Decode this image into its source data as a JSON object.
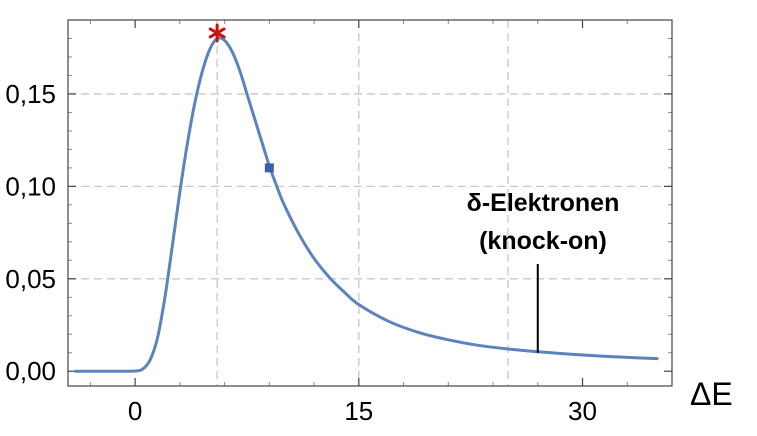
{
  "chart_data": {
    "type": "line",
    "title": "",
    "xlabel": "ΔE",
    "ylabel": "",
    "xlim": [
      -4.5,
      36
    ],
    "ylim": [
      -0.008,
      0.19
    ],
    "x_ticks": [
      0,
      15,
      30
    ],
    "x_tick_labels": [
      "0",
      "15",
      "30"
    ],
    "y_ticks": [
      0.0,
      0.05,
      0.1,
      0.15
    ],
    "y_tick_labels": [
      "0,00",
      "0,05",
      "0,10",
      "0,15"
    ],
    "x_gridlines": [
      5.5,
      15,
      25
    ],
    "y_gridlines": [
      0.05,
      0.1,
      0.15
    ],
    "grid": true,
    "colors": {
      "curve": "#5b84bf",
      "peak_marker": "#cc1111",
      "mean_marker": "#3b5fa5",
      "grid": "#c8c8c8",
      "frame": "#444444"
    },
    "series": [
      {
        "values": [
          {
            "x": -4.0,
            "y": 0.0
          },
          {
            "x": -1.0,
            "y": 0.0
          },
          {
            "x": 0.0,
            "y": 0.0001
          },
          {
            "x": 0.5,
            "y": 0.0011
          },
          {
            "x": 1.0,
            "y": 0.006
          },
          {
            "x": 1.5,
            "y": 0.018
          },
          {
            "x": 2.0,
            "y": 0.04
          },
          {
            "x": 2.5,
            "y": 0.068
          },
          {
            "x": 3.0,
            "y": 0.097
          },
          {
            "x": 3.5,
            "y": 0.123
          },
          {
            "x": 4.0,
            "y": 0.145
          },
          {
            "x": 4.5,
            "y": 0.162
          },
          {
            "x": 5.0,
            "y": 0.174
          },
          {
            "x": 5.5,
            "y": 0.18
          },
          {
            "x": 6.0,
            "y": 0.179
          },
          {
            "x": 6.5,
            "y": 0.173
          },
          {
            "x": 7.0,
            "y": 0.163
          },
          {
            "x": 7.5,
            "y": 0.15
          },
          {
            "x": 8.0,
            "y": 0.137
          },
          {
            "x": 8.5,
            "y": 0.124
          },
          {
            "x": 9.0,
            "y": 0.111
          },
          {
            "x": 9.5,
            "y": 0.1
          },
          {
            "x": 10.0,
            "y": 0.09
          },
          {
            "x": 11.0,
            "y": 0.074
          },
          {
            "x": 12.0,
            "y": 0.061
          },
          {
            "x": 13.0,
            "y": 0.051
          },
          {
            "x": 14.0,
            "y": 0.043
          },
          {
            "x": 15.0,
            "y": 0.036
          },
          {
            "x": 17.0,
            "y": 0.027
          },
          {
            "x": 19.0,
            "y": 0.021
          },
          {
            "x": 21.0,
            "y": 0.017
          },
          {
            "x": 23.0,
            "y": 0.014
          },
          {
            "x": 25.0,
            "y": 0.012
          },
          {
            "x": 27.0,
            "y": 0.0105
          },
          {
            "x": 29.0,
            "y": 0.0093
          },
          {
            "x": 31.0,
            "y": 0.0083
          },
          {
            "x": 33.0,
            "y": 0.0075
          },
          {
            "x": 35.0,
            "y": 0.0068
          }
        ]
      }
    ],
    "markers": [
      {
        "shape": "asterisk",
        "x": 5.5,
        "y": 0.183,
        "color": "#cc1111"
      },
      {
        "shape": "square",
        "x": 9.0,
        "y": 0.11,
        "color": "#3b5fa5"
      }
    ],
    "annotation": {
      "lines": [
        "δ-Elektronen",
        "(knock-on)"
      ],
      "pointer": {
        "x": 27.0,
        "y_from": 0.058,
        "y_to": 0.01
      }
    }
  }
}
